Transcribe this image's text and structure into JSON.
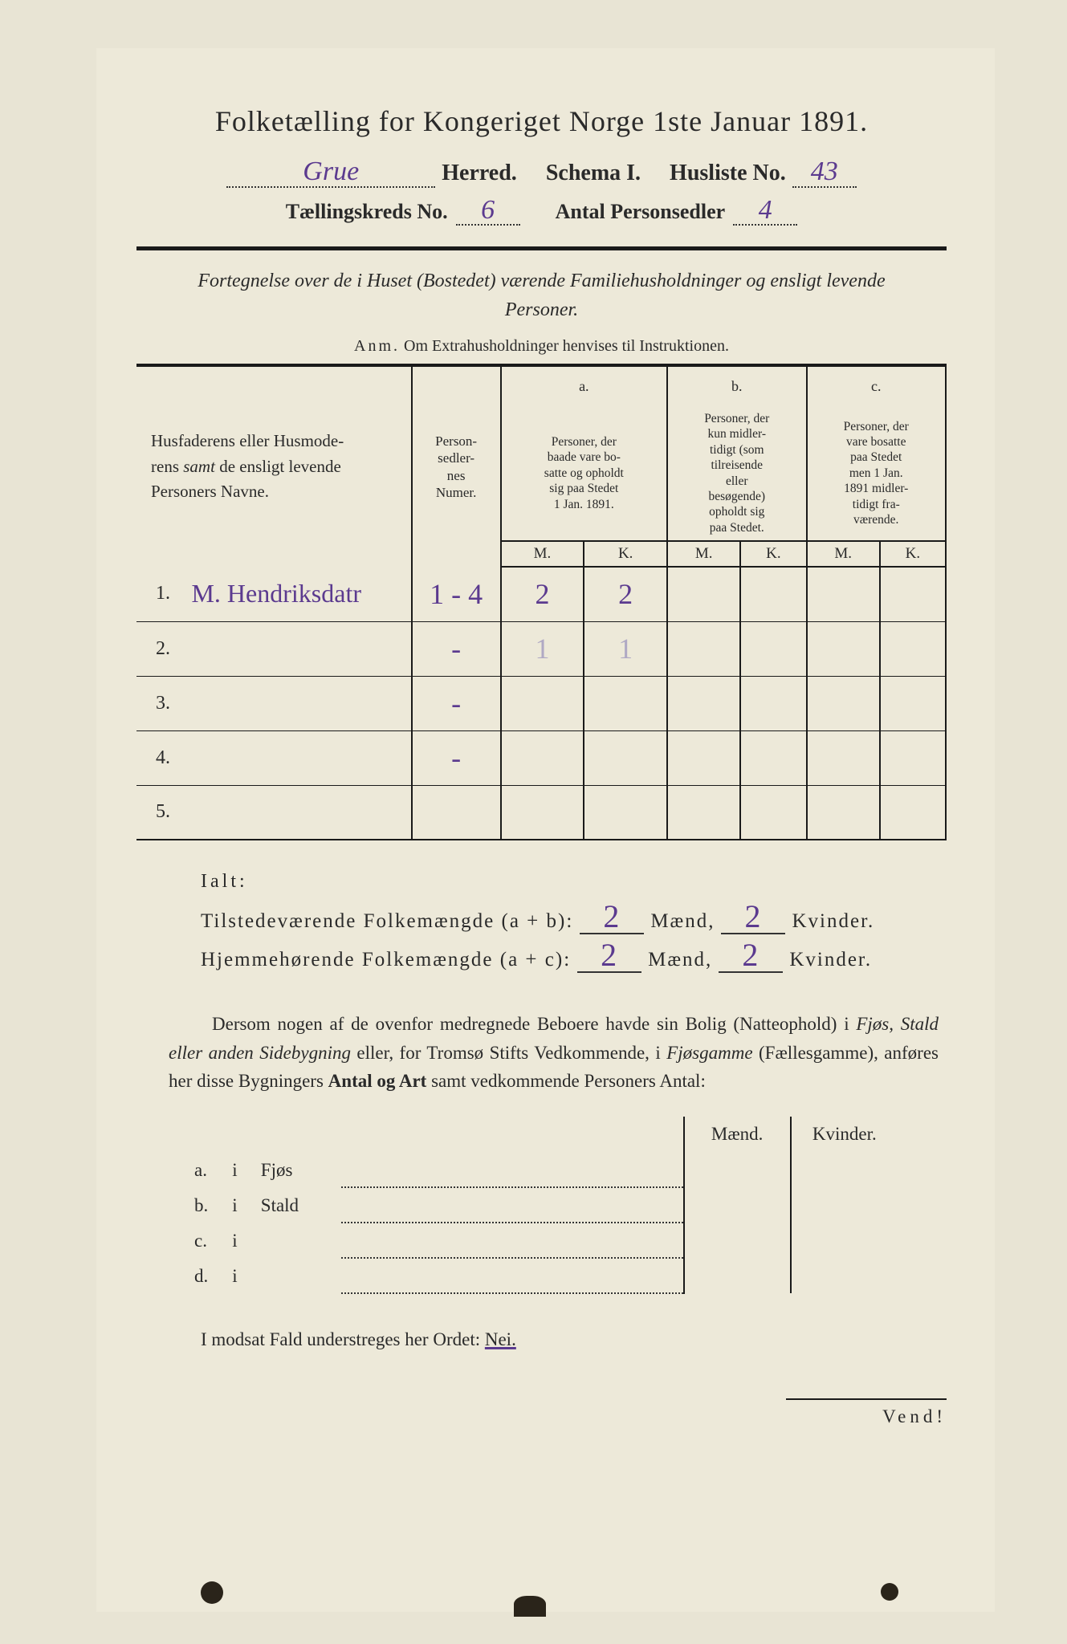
{
  "doc": {
    "title": "Folketælling for Kongeriget Norge 1ste Januar 1891.",
    "header": {
      "herred_value": "Grue",
      "herred_label": "Herred.",
      "schema_label": "Schema I.",
      "husliste_label": "Husliste No.",
      "husliste_value": "43",
      "kreds_label": "Tællingskreds No.",
      "kreds_value": "6",
      "antal_label": "Antal Personsedler",
      "antal_value": "4"
    },
    "subtitle": "Fortegnelse over de i Huset (Bostedet) værende Familiehusholdninger og ensligt levende Personer.",
    "anm_label": "Anm.",
    "anm_text": "Om Extrahusholdninger henvises til Instruktionen.",
    "table": {
      "col_name": "Husfaderens eller Husmoderens samt de ensligt levende Personers Navne.",
      "col_num": "Person-sedler-nes Numer.",
      "abc": {
        "a_label": "a.",
        "a_text": "Personer, der baade vare bosatte og opholdt sig paa Stedet 1 Jan. 1891.",
        "b_label": "b.",
        "b_text": "Personer, der kun midlertidigt (som tilreisende eller besøgende) opholdt sig paa Stedet.",
        "c_label": "c.",
        "c_text": "Personer, der vare bosatte paa Stedet men 1 Jan. 1891 midlertidigt fraværende."
      },
      "mk_m": "M.",
      "mk_k": "K.",
      "rows": [
        {
          "n": "1.",
          "name": "M. Hendriksdatr",
          "num": "1 - 4",
          "a_m": "2",
          "a_k": "2",
          "b_m": "",
          "b_k": "",
          "c_m": "",
          "c_k": ""
        },
        {
          "n": "2.",
          "name": "",
          "num": "-",
          "a_m": "1",
          "a_k": "1",
          "b_m": "",
          "b_k": "",
          "c_m": "",
          "c_k": "",
          "faded": true
        },
        {
          "n": "3.",
          "name": "",
          "num": "-",
          "a_m": "",
          "a_k": "",
          "b_m": "",
          "b_k": "",
          "c_m": "",
          "c_k": ""
        },
        {
          "n": "4.",
          "name": "",
          "num": "-",
          "a_m": "",
          "a_k": "",
          "b_m": "",
          "b_k": "",
          "c_m": "",
          "c_k": ""
        },
        {
          "n": "5.",
          "name": "",
          "num": "",
          "a_m": "",
          "a_k": "",
          "b_m": "",
          "b_k": "",
          "c_m": "",
          "c_k": ""
        }
      ]
    },
    "totals": {
      "ialt": "Ialt:",
      "line1_label": "Tilstedeværende Folkemængde (a + b):",
      "line2_label": "Hjemmehørende Folkemængde (a + c):",
      "maend": "Mænd,",
      "kvinder": "Kvinder.",
      "ab_m": "2",
      "ab_k": "2",
      "ac_m": "2",
      "ac_k": "2"
    },
    "para_parts": {
      "p1": "Dersom nogen af de ovenfor medregnede Beboere havde sin Bolig (Natteophold) i ",
      "p2": "Fjøs, Stald eller anden Sidebygning",
      "p3": " eller, for Tromsø Stifts Vedkommende, i ",
      "p4": "Fjøsgamme",
      "p5": " (Fællesgamme), anføres her disse Bygningers ",
      "p6": "Antal og Art",
      "p7": " samt vedkommende Personers Antal:"
    },
    "side_table": {
      "maend": "Mænd.",
      "kvinder": "Kvinder.",
      "rows": [
        {
          "l": "a.",
          "i": "i",
          "t": "Fjøs"
        },
        {
          "l": "b.",
          "i": "i",
          "t": "Stald"
        },
        {
          "l": "c.",
          "i": "i",
          "t": ""
        },
        {
          "l": "d.",
          "i": "i",
          "t": ""
        }
      ]
    },
    "nei_line_pre": "I modsat Fald understreges her Ordet: ",
    "nei": "Nei.",
    "vend": "Vend!"
  },
  "style": {
    "bg": "#ede9d9",
    "ink": "#2a2a2a",
    "hand_color": "#5b3a8f",
    "hand_faded": "#b0a9c4"
  }
}
